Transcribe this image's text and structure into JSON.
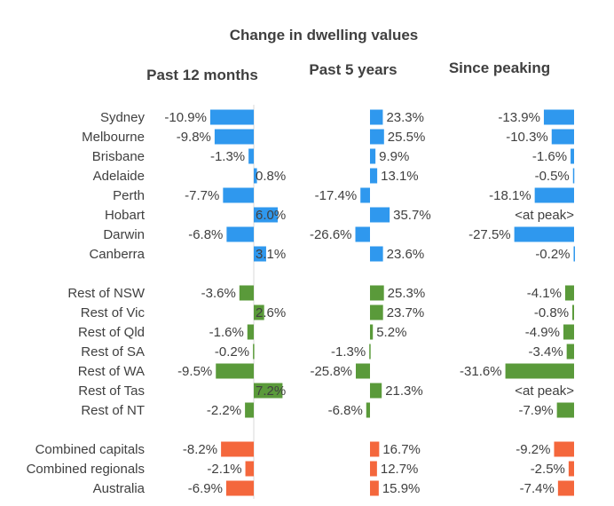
{
  "chart_data": {
    "type": "bar",
    "title": "Change in dwelling values",
    "categories": [
      "Sydney",
      "Melbourne",
      "Brisbane",
      "Adelaide",
      "Perth",
      "Hobart",
      "Darwin",
      "Canberra",
      "Rest of NSW",
      "Rest of Vic",
      "Rest of Qld",
      "Rest of SA",
      "Rest of WA",
      "Rest of Tas",
      "Rest of NT",
      "Combined capitals",
      "Combined regionals",
      "Australia"
    ],
    "groups": [
      "capital",
      "capital",
      "capital",
      "capital",
      "capital",
      "capital",
      "capital",
      "capital",
      "regional",
      "regional",
      "regional",
      "regional",
      "regional",
      "regional",
      "regional",
      "aggregate",
      "aggregate",
      "aggregate"
    ],
    "group_colors": {
      "capital": "#2f98ee",
      "regional": "#5a9a3a",
      "aggregate": "#f4673c"
    },
    "panels": [
      {
        "title": "Past 12 months",
        "values": [
          -10.9,
          -9.8,
          -1.3,
          0.8,
          -7.7,
          6.0,
          -6.8,
          3.1,
          -3.6,
          2.6,
          -1.6,
          -0.2,
          -9.5,
          7.2,
          -2.2,
          -8.2,
          -2.1,
          -6.9
        ],
        "labels": [
          "-10.9%",
          "-9.8%",
          "-1.3%",
          "0.8%",
          "-7.7%",
          "6.0%",
          "-6.8%",
          "3.1%",
          "-3.6%",
          "2.6%",
          "-1.6%",
          "-0.2%",
          "-9.5%",
          "7.2%",
          "-2.2%",
          "-8.2%",
          "-2.1%",
          "-6.9%"
        ]
      },
      {
        "title": "Past 5 years",
        "values": [
          23.3,
          25.5,
          9.9,
          13.1,
          -17.4,
          35.7,
          -26.6,
          23.6,
          25.3,
          23.7,
          5.2,
          -1.3,
          -25.8,
          21.3,
          -6.8,
          16.7,
          12.7,
          15.9
        ],
        "labels": [
          "23.3%",
          "25.5%",
          "9.9%",
          "13.1%",
          "-17.4%",
          "35.7%",
          "-26.6%",
          "23.6%",
          "25.3%",
          "23.7%",
          "5.2%",
          "-1.3%",
          "-25.8%",
          "21.3%",
          "-6.8%",
          "16.7%",
          "12.7%",
          "15.9%"
        ]
      },
      {
        "title": "Since peaking",
        "values": [
          -13.9,
          -10.3,
          -1.6,
          -0.5,
          -18.1,
          0,
          -27.5,
          -0.2,
          -4.1,
          -0.8,
          -4.9,
          -3.4,
          -31.6,
          0,
          -7.9,
          -9.2,
          -2.5,
          -7.4
        ],
        "labels": [
          "-13.9%",
          "-10.3%",
          "-1.6%",
          "-0.5%",
          "-18.1%",
          "<at peak>",
          "-27.5%",
          "-0.2%",
          "-4.1%",
          "-0.8%",
          "-4.9%",
          "-3.4%",
          "-31.6%",
          "<at peak>",
          "-7.9%",
          "-9.2%",
          "-2.5%",
          "-7.4%"
        ]
      }
    ]
  }
}
